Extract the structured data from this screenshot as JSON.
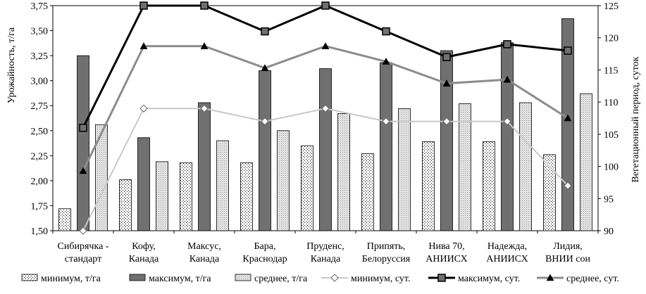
{
  "chart_data": {
    "type": "bar+line",
    "categories": [
      [
        "Сибирячка -",
        "стандарт"
      ],
      [
        "Кофу,",
        "Канада"
      ],
      [
        "Максус,",
        "Канада"
      ],
      [
        "Бара,",
        "Краснодар"
      ],
      [
        "Пруденс,",
        "Канада"
      ],
      [
        "Припять,",
        "Белоруссия"
      ],
      [
        "Нива 70,",
        "АНИИСХ"
      ],
      [
        "Надежда,",
        "АНИИСХ"
      ],
      [
        "Лидия,",
        "ВНИИ сои"
      ]
    ],
    "left_axis": {
      "label": "Урожайность, т/га",
      "ylim": [
        1.5,
        3.75
      ],
      "ticks": [
        "1,50",
        "1,75",
        "2,00",
        "2,25",
        "2,50",
        "2,75",
        "3,00",
        "3,25",
        "3,50",
        "3,75"
      ],
      "tick_values": [
        1.5,
        1.75,
        2.0,
        2.25,
        2.5,
        2.75,
        3.0,
        3.25,
        3.5,
        3.75
      ]
    },
    "right_axis": {
      "label": "Вегетационный период, суток",
      "ylim": [
        90,
        125
      ],
      "ticks": [
        "90",
        "95",
        "100",
        "105",
        "110",
        "115",
        "120",
        "125"
      ],
      "tick_values": [
        90,
        95,
        100,
        105,
        110,
        115,
        120,
        125
      ]
    },
    "bar_series": [
      {
        "name": "минимум, т/га",
        "pattern": "dots",
        "values": [
          1.72,
          2.01,
          2.18,
          2.18,
          2.35,
          2.27,
          2.39,
          2.39,
          2.26
        ]
      },
      {
        "name": "максимум, т/га",
        "pattern": "solid",
        "values": [
          3.25,
          2.43,
          2.78,
          3.1,
          3.12,
          3.18,
          3.3,
          3.38,
          3.62
        ]
      },
      {
        "name": "среднее, т/га",
        "pattern": "dense",
        "values": [
          2.56,
          2.19,
          2.4,
          2.5,
          2.67,
          2.72,
          2.77,
          2.78,
          2.87
        ]
      }
    ],
    "line_series": [
      {
        "name": "минимум, сут.",
        "marker": "diamond",
        "values": [
          90,
          109,
          109,
          107,
          109,
          107,
          107,
          107,
          97
        ]
      },
      {
        "name": "максимум, сут.",
        "marker": "square",
        "values": [
          106,
          125,
          125,
          121,
          125,
          121,
          117,
          119,
          118
        ]
      },
      {
        "name": "среднее, сут.",
        "marker": "triangle",
        "values": [
          99.3,
          118.7,
          118.7,
          115.3,
          118.7,
          116.3,
          112.9,
          113.5,
          107.5
        ]
      }
    ],
    "legend_position": "bottom",
    "colors": {
      "bar_min": "#ffffff",
      "bar_max": "#707070",
      "bar_avg": "#e0e0e0",
      "line_min": "#c8c8c8",
      "line_max": "#000000",
      "line_avg": "#8c8c8c"
    }
  }
}
